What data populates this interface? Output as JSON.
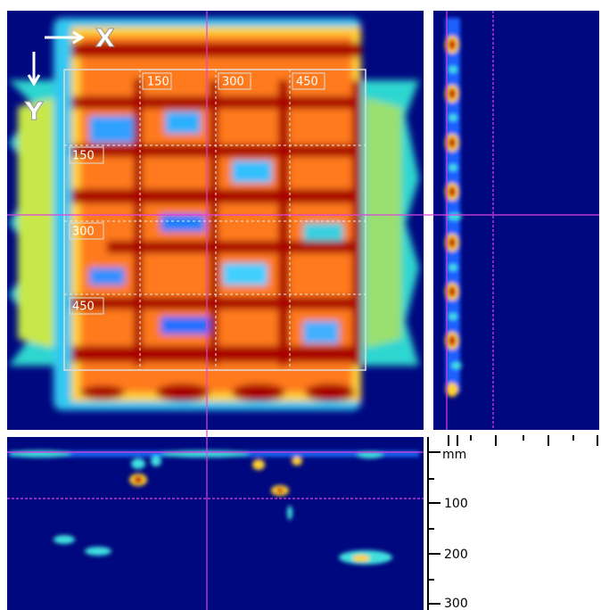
{
  "axis_labels": {
    "x": "X",
    "y": "Y"
  },
  "plan_view": {
    "x_labels": [
      "150",
      "300",
      "450"
    ],
    "y_labels": [
      "150",
      "300",
      "450"
    ]
  },
  "depth_scale": {
    "unit": "mm",
    "labels": [
      "100",
      "200",
      "300"
    ]
  }
}
